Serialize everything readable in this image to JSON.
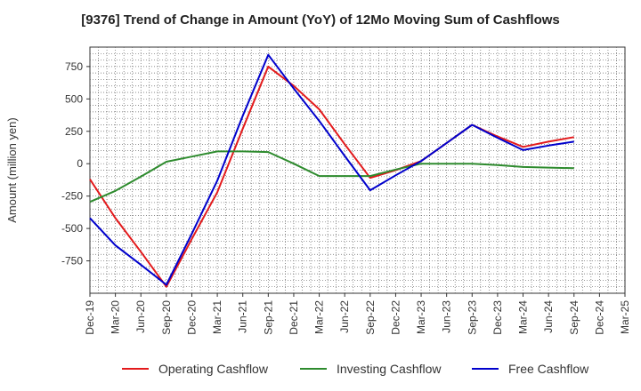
{
  "chart_data": {
    "type": "line",
    "title": "[9376]  Trend of Change in Amount (YoY) of 12Mo Moving Sum of Cashflows",
    "xlabel": "",
    "ylabel": "Amount (million yen)",
    "ylim": [
      -1000,
      900
    ],
    "yticks": [
      750,
      500,
      250,
      0,
      -250,
      -500,
      -750
    ],
    "ytick_labels": [
      "750",
      "500",
      "250",
      "0",
      "-250",
      "-500",
      "-750"
    ],
    "grid": true,
    "legend_position": "bottom",
    "categories": [
      "Dec-19",
      "Mar-20",
      "Jun-20",
      "Sep-20",
      "Dec-20",
      "Mar-21",
      "Jun-21",
      "Sep-21",
      "Dec-21",
      "Mar-22",
      "Jun-22",
      "Sep-22",
      "Dec-22",
      "Mar-23",
      "Jun-23",
      "Sep-23",
      "Dec-23",
      "Mar-24",
      "Jun-24",
      "Sep-24",
      "Dec-24",
      "Mar-25"
    ],
    "series": [
      {
        "name": "Operating Cashflow",
        "color": "#e31a1c",
        "values": [
          -120,
          -420,
          -680,
          -950,
          -580,
          -220,
          270,
          750,
          600,
          420,
          150,
          -110,
          -50,
          20,
          160,
          300,
          210,
          130,
          170,
          205,
          null,
          null
        ]
      },
      {
        "name": "Investing Cashflow",
        "color": "#2e8b2e",
        "values": [
          -295,
          -210,
          -100,
          15,
          55,
          95,
          95,
          90,
          0,
          -95,
          -95,
          -95,
          -45,
          0,
          0,
          0,
          -10,
          -25,
          -30,
          -35,
          null,
          null
        ]
      },
      {
        "name": "Free Cashflow",
        "color": "#0000cc",
        "values": [
          -420,
          -630,
          -780,
          -935,
          -540,
          -130,
          370,
          840,
          580,
          330,
          60,
          -205,
          -90,
          20,
          160,
          300,
          200,
          105,
          140,
          170,
          null,
          null
        ]
      }
    ]
  }
}
